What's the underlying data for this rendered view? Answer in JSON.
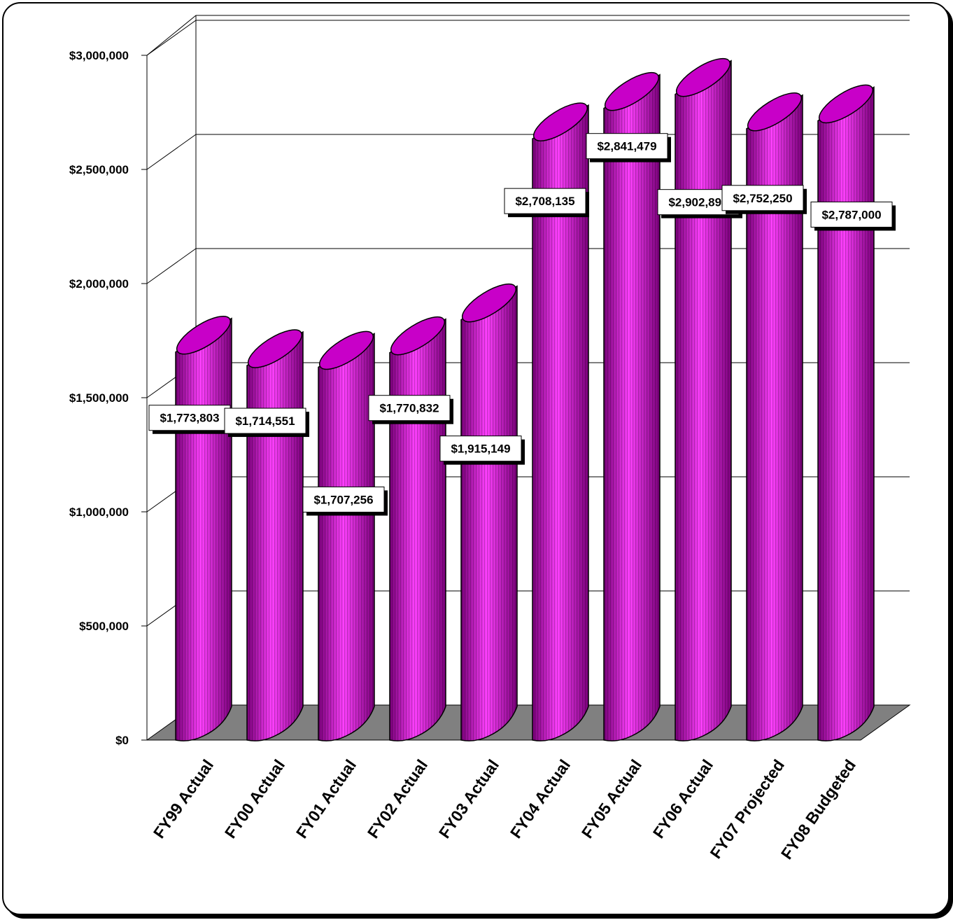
{
  "colors": {
    "bar_body": "#c800c8",
    "bar_highlight": "#ff40ff",
    "bar_shadow": "#7a007a",
    "floor": "#808080",
    "grid": "#000000"
  },
  "chart_data": {
    "type": "bar",
    "style": "3d-cylinder",
    "title": "",
    "xlabel": "",
    "ylabel": "",
    "ylim": [
      0,
      3000000
    ],
    "grid": true,
    "legend": "none",
    "y_ticks": [
      {
        "value": 0,
        "label": "$0"
      },
      {
        "value": 500000,
        "label": "$500,000"
      },
      {
        "value": 1000000,
        "label": "$1,000,000"
      },
      {
        "value": 1500000,
        "label": "$1,500,000"
      },
      {
        "value": 2000000,
        "label": "$2,000,000"
      },
      {
        "value": 2500000,
        "label": "$2,500,000"
      },
      {
        "value": 3000000,
        "label": "$3,000,000"
      }
    ],
    "categories": [
      "FY99 Actual",
      "FY00 Actual",
      "FY01 Actual",
      "FY02 Actual",
      "FY03 Actual",
      "FY04 Actual",
      "FY05 Actual",
      "FY06 Actual",
      "FY07 Projected",
      "FY08 Budgeted"
    ],
    "values": [
      1773803,
      1714551,
      1707256,
      1770832,
      1915149,
      2708135,
      2841479,
      2902894,
      2752250,
      2787000
    ],
    "data_labels": [
      "$1,773,803",
      "$1,714,551",
      "$1,707,256",
      "$1,770,832",
      "$1,915,149",
      "$2,708,135",
      "$2,841,479",
      "$2,902,894",
      "$2,752,250",
      "$2,787,000"
    ]
  }
}
